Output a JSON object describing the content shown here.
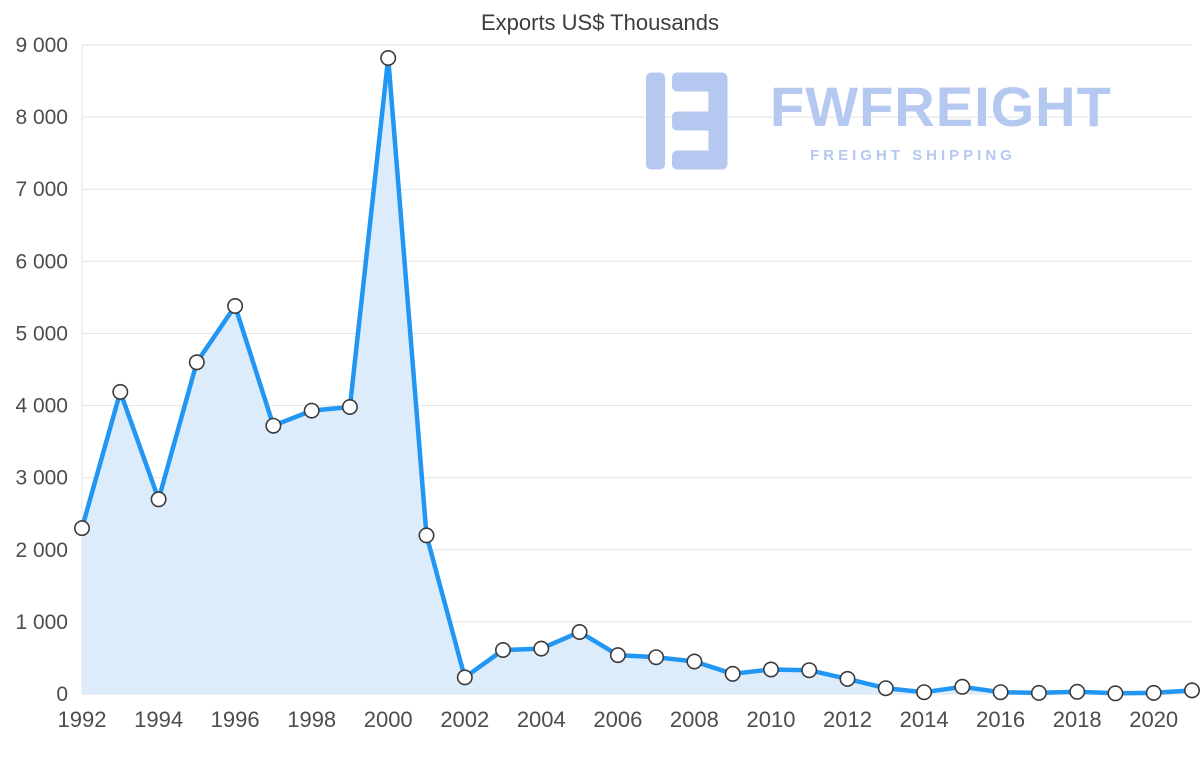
{
  "title": "Exports US$ Thousands",
  "watermark": {
    "brand": "FWFREIGHT",
    "tagline": "FREIGHT SHIPPING"
  },
  "chart_data": {
    "type": "area",
    "title": "Exports US$ Thousands",
    "x": [
      1992,
      1993,
      1994,
      1995,
      1996,
      1997,
      1998,
      1999,
      2000,
      2001,
      2002,
      2003,
      2004,
      2005,
      2006,
      2007,
      2008,
      2009,
      2010,
      2011,
      2012,
      2013,
      2014,
      2015,
      2016,
      2017,
      2018,
      2019,
      2020,
      2021
    ],
    "series": [
      {
        "name": "Exports US$ Thousands",
        "values": [
          2300,
          4190,
          2700,
          4600,
          5380,
          3720,
          3930,
          3980,
          8820,
          2200,
          230,
          610,
          630,
          860,
          540,
          510,
          450,
          280,
          340,
          330,
          210,
          80,
          25,
          100,
          25,
          15,
          30,
          10,
          15,
          50
        ]
      }
    ],
    "ylim": [
      0,
      9000
    ],
    "ytick_step": 1000,
    "ytick_labels": [
      "0",
      "1 000",
      "2 000",
      "3 000",
      "4 000",
      "5 000",
      "6 000",
      "7 000",
      "8 000",
      "9 000"
    ],
    "xtick_labels": [
      "1992",
      "1994",
      "1996",
      "1998",
      "2000",
      "2002",
      "2004",
      "2006",
      "2008",
      "2010",
      "2012",
      "2014",
      "2016",
      "2018",
      "2020"
    ],
    "grid": "horizontal",
    "legend": "none",
    "marker": "circle",
    "colors": {
      "line": "#2196f3",
      "fill": "#ddecfb",
      "marker_fill": "#ffffff",
      "marker_stroke": "#3b3b3b",
      "grid": "#e2e2e2",
      "axis_text": "#4d4d4d",
      "title_text": "#3d3d3d",
      "watermark": "#b5c8f0"
    }
  }
}
